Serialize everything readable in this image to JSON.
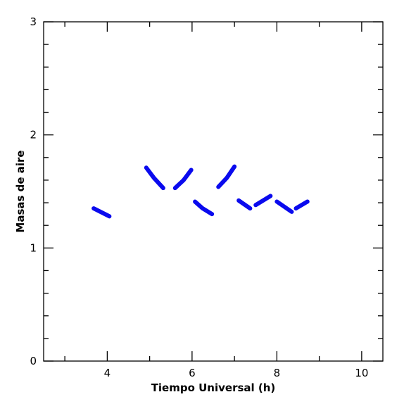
{
  "chart_data": {
    "type": "line",
    "title": "",
    "xlabel": "Tiempo Universal (h)",
    "ylabel": "Masas de aire",
    "xlim": [
      2.5,
      10.5
    ],
    "ylim": [
      0,
      3
    ],
    "x_major_ticks": [
      4,
      6,
      8,
      10
    ],
    "x_minor_ticks": [
      3,
      5,
      7,
      9
    ],
    "y_major_ticks": [
      0,
      1,
      2,
      3
    ],
    "y_minor_ticks": [
      0.2,
      0.4,
      0.6,
      0.8,
      1.2,
      1.4,
      1.6,
      1.8,
      2.2,
      2.4,
      2.6,
      2.8
    ],
    "grid": false,
    "series_color": "#0a0aee",
    "series": [
      {
        "x": [
          3.68,
          4.05
        ],
        "y": [
          1.35,
          1.28
        ]
      },
      {
        "x": [
          4.92,
          5.1,
          5.32
        ],
        "y": [
          1.71,
          1.62,
          1.53
        ]
      },
      {
        "x": [
          5.6,
          5.8,
          5.98
        ],
        "y": [
          1.53,
          1.6,
          1.69
        ]
      },
      {
        "x": [
          6.07,
          6.25,
          6.47
        ],
        "y": [
          1.41,
          1.35,
          1.3
        ]
      },
      {
        "x": [
          6.62,
          6.82,
          7.0
        ],
        "y": [
          1.54,
          1.62,
          1.72
        ]
      },
      {
        "x": [
          7.1,
          7.37
        ],
        "y": [
          1.42,
          1.35
        ]
      },
      {
        "x": [
          7.5,
          7.85
        ],
        "y": [
          1.38,
          1.46
        ]
      },
      {
        "x": [
          8.0,
          8.35
        ],
        "y": [
          1.41,
          1.32
        ]
      },
      {
        "x": [
          8.45,
          8.72
        ],
        "y": [
          1.35,
          1.41
        ]
      }
    ]
  }
}
